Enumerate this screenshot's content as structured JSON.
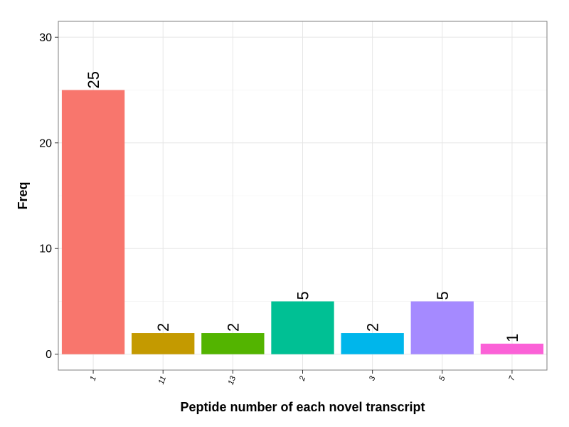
{
  "chart_data": {
    "type": "bar",
    "categories": [
      "1",
      "11",
      "13",
      "2",
      "3",
      "5",
      "7"
    ],
    "values": [
      25,
      2,
      2,
      5,
      2,
      5,
      1
    ],
    "value_labels": [
      "25",
      "2",
      "2",
      "5",
      "2",
      "5",
      "1"
    ],
    "colors": [
      "#F8766D",
      "#C49A00",
      "#53B400",
      "#00C094",
      "#00B6EB",
      "#A58AFF",
      "#FB61D7"
    ],
    "xlabel": "Peptide number of each novel transcript",
    "ylabel": "Freq",
    "ylim": [
      -1.5,
      31.5
    ],
    "yticks": [
      0,
      10,
      20,
      30
    ],
    "ytick_labels": [
      "0",
      "10",
      "20",
      "30"
    ],
    "grid": true,
    "legend": "none"
  }
}
